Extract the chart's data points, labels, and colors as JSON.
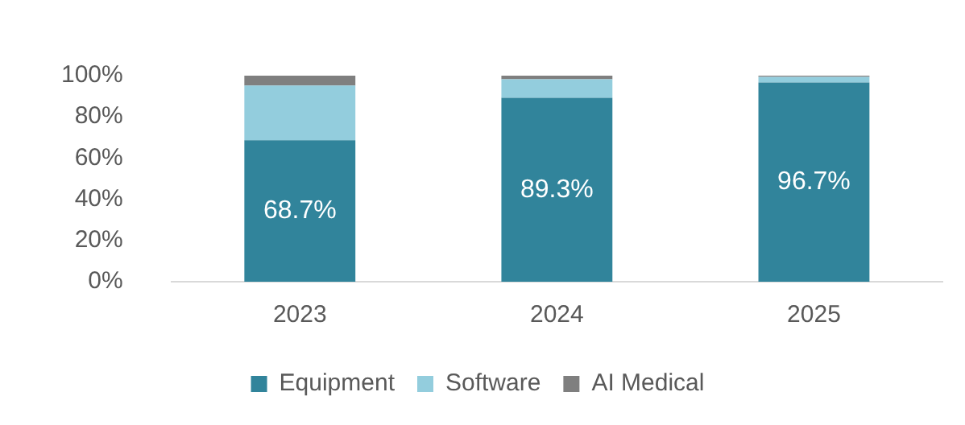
{
  "chart_data": {
    "type": "bar",
    "stacked": true,
    "categories": [
      "2023",
      "2024",
      "2025"
    ],
    "series": [
      {
        "name": "Equipment",
        "color": "#31849b",
        "values": [
          68.7,
          89.3,
          96.7
        ],
        "value_labels": [
          "68.7%",
          "89.3%",
          "96.7%"
        ]
      },
      {
        "name": "Software",
        "color": "#93cddd",
        "values": [
          26.5,
          8.9,
          2.7
        ]
      },
      {
        "name": "AI Medical",
        "color": "#7f7f7f",
        "values": [
          4.8,
          1.8,
          0.6
        ]
      }
    ],
    "ylim": [
      0,
      100
    ],
    "yticks": [
      {
        "value": 0,
        "label": "0%"
      },
      {
        "value": 20,
        "label": "20%"
      },
      {
        "value": 40,
        "label": "40%"
      },
      {
        "value": 60,
        "label": "60%"
      },
      {
        "value": 80,
        "label": "80%"
      },
      {
        "value": 100,
        "label": "100%"
      }
    ],
    "grid": false,
    "legend": "bottom"
  }
}
